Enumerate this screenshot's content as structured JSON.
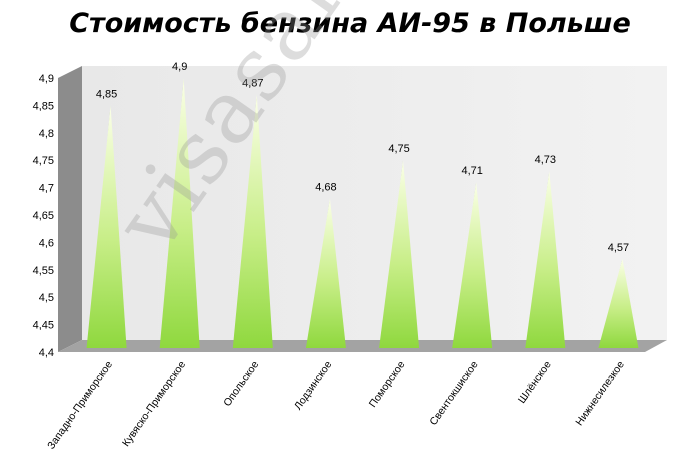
{
  "chart_data": {
    "type": "bar",
    "title": "Стоимость бензина АИ-95 в Польше",
    "categories": [
      "Западно-Приморское",
      "Кувяско-Приморское",
      "Опольское",
      "Лодзинское",
      "Поморское",
      "Свентокшиское",
      "Шлёнское",
      "Нижнесилезкое"
    ],
    "values": [
      4.85,
      4.9,
      4.87,
      4.68,
      4.75,
      4.71,
      4.73,
      4.57
    ],
    "value_labels": [
      "4,85",
      "4,9",
      "4,87",
      "4,68",
      "4,75",
      "4,71",
      "4,73",
      "4,57"
    ],
    "y_ticks": [
      "4,4",
      "4,45",
      "4,5",
      "4,55",
      "4,6",
      "4,65",
      "4,7",
      "4,75",
      "4,8",
      "4,85",
      "4,9"
    ],
    "ylim": [
      4.4,
      4.9
    ],
    "bar_shape": "pyramid",
    "grid": false,
    "legend": "none",
    "colors": {
      "bar_light": "#fbffe8",
      "bar_mid": "#c8ee88",
      "bar_base": "#8fd83e",
      "bar_shadow": "#3f6a1c",
      "wall": "#f2f2f2",
      "floor": "#a3a3a3",
      "side_wall": "#8c8c8c"
    }
  },
  "watermark": "visasam.ru"
}
